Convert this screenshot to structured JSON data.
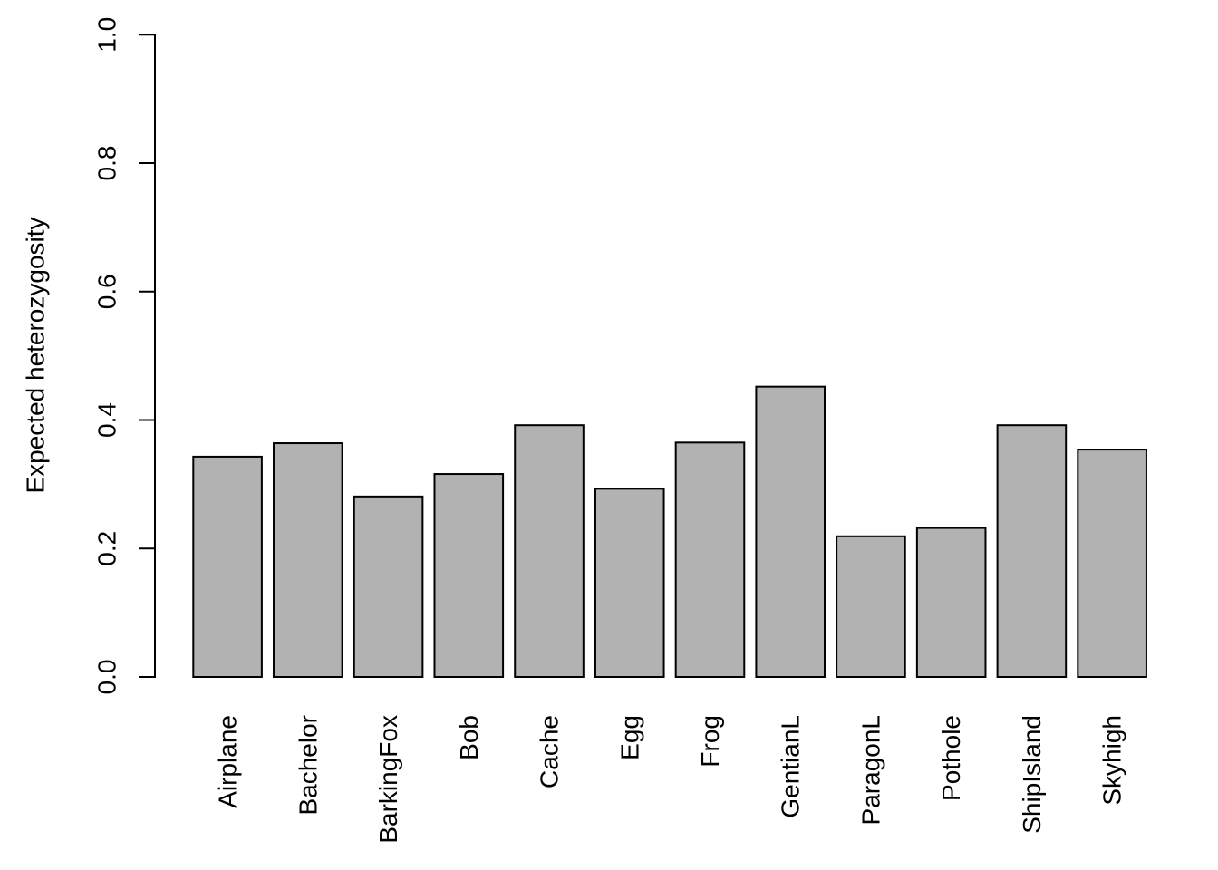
{
  "chart_data": {
    "type": "bar",
    "title": "",
    "xlabel": "",
    "ylabel": "Expected heterozygosity",
    "categories": [
      "Airplane",
      "Bachelor",
      "BarkingFox",
      "Bob",
      "Cache",
      "Egg",
      "Frog",
      "GentianL",
      "ParagonL",
      "Pothole",
      "ShipIsland",
      "Skyhigh"
    ],
    "values": [
      0.343,
      0.364,
      0.281,
      0.316,
      0.392,
      0.293,
      0.365,
      0.452,
      0.219,
      0.232,
      0.392,
      0.354
    ],
    "ylim": [
      0.0,
      1.0
    ],
    "yticks": [
      0.0,
      0.2,
      0.4,
      0.6,
      0.8,
      1.0
    ],
    "ytick_labels": [
      "0.0",
      "0.2",
      "0.4",
      "0.6",
      "0.8",
      "1.0"
    ],
    "grid": false,
    "legend": null,
    "x_label_rotation_deg": 90,
    "y_label_rotation_deg": 90,
    "colors": {
      "bar_fill": "#b2b2b2",
      "bar_border": "#000000",
      "axis": "#000000",
      "text": "#000000",
      "background": "#ffffff"
    }
  }
}
